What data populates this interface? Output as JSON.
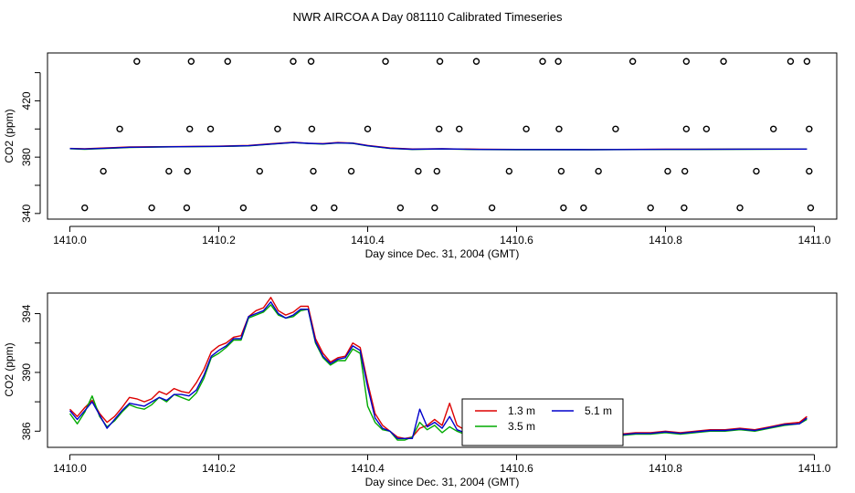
{
  "title": "NWR AIRCOA A  Day 081110  Calibrated Timeseries",
  "colors": {
    "h1": "#dd0000",
    "h2": "#00aa00",
    "h3": "#0000cc",
    "axis": "#000000"
  },
  "chart_data": [
    {
      "type": "line",
      "panel": "top",
      "xlabel": "Day since Dec. 31, 2004 (GMT)",
      "ylabel": "CO2 (ppm)",
      "xlim": [
        1409.97,
        1411.03
      ],
      "ylim": [
        336,
        454
      ],
      "x_ticks": [
        1410.0,
        1410.2,
        1410.4,
        1410.6,
        1410.8,
        1411.0
      ],
      "x_tick_labels": [
        "1410.0",
        "1410.2",
        "1410.4",
        "1410.6",
        "1410.8",
        "1411.0"
      ],
      "y_ticks": [
        340,
        380,
        420
      ],
      "y_tick_labels": [
        "340",
        "380",
        "420"
      ],
      "y_minor_ticks": [
        360,
        400,
        440
      ],
      "series": [
        {
          "color_key": "h1",
          "x": [
            1410.0,
            1410.02,
            1410.05,
            1410.08,
            1410.12,
            1410.16,
            1410.2,
            1410.24,
            1410.27,
            1410.3,
            1410.32,
            1410.34,
            1410.36,
            1410.38,
            1410.4,
            1410.43,
            1410.46,
            1410.5,
            1410.55,
            1410.6,
            1410.7,
            1410.8,
            1410.9,
            1410.99
          ],
          "y": [
            386.2,
            385.9,
            386.6,
            387.2,
            387.4,
            387.6,
            387.8,
            388.3,
            389.5,
            390.6,
            389.9,
            389.6,
            390.4,
            390.0,
            388.3,
            386.5,
            385.8,
            386.0,
            385.6,
            385.5,
            385.4,
            385.6,
            385.7,
            385.8
          ]
        },
        {
          "color_key": "h2",
          "x": [
            1410.0,
            1410.02,
            1410.05,
            1410.08,
            1410.12,
            1410.16,
            1410.2,
            1410.24,
            1410.27,
            1410.3,
            1410.32,
            1410.34,
            1410.36,
            1410.38,
            1410.4,
            1410.43,
            1410.46,
            1410.5,
            1410.55,
            1410.6,
            1410.7,
            1410.8,
            1410.9,
            1410.99
          ],
          "y": [
            386.0,
            385.6,
            386.2,
            386.9,
            387.2,
            387.4,
            387.6,
            388.0,
            389.2,
            390.3,
            389.7,
            389.3,
            390.1,
            389.8,
            388.0,
            386.2,
            385.5,
            385.8,
            385.4,
            385.3,
            385.3,
            385.5,
            385.6,
            385.7
          ]
        },
        {
          "color_key": "h3",
          "x": [
            1410.0,
            1410.02,
            1410.05,
            1410.08,
            1410.12,
            1410.16,
            1410.2,
            1410.24,
            1410.27,
            1410.3,
            1410.32,
            1410.34,
            1410.36,
            1410.38,
            1410.4,
            1410.43,
            1410.46,
            1410.5,
            1410.55,
            1410.6,
            1410.7,
            1410.8,
            1410.9,
            1410.99
          ],
          "y": [
            386.1,
            385.8,
            386.4,
            387.0,
            387.3,
            387.5,
            387.7,
            388.1,
            389.3,
            390.4,
            389.8,
            389.4,
            390.2,
            389.9,
            388.1,
            386.3,
            385.6,
            385.9,
            385.5,
            385.4,
            385.35,
            385.55,
            385.65,
            385.75
          ]
        }
      ],
      "points": {
        "x": [
          1410.09,
          1410.163,
          1410.212,
          1410.3,
          1410.324,
          1410.424,
          1410.497,
          1410.546,
          1410.635,
          1410.656,
          1410.756,
          1410.828,
          1410.878,
          1410.968,
          1410.99,
          1410.067,
          1410.161,
          1410.189,
          1410.279,
          1410.325,
          1410.4,
          1410.496,
          1410.523,
          1410.613,
          1410.657,
          1410.733,
          1410.828,
          1410.855,
          1410.945,
          1410.993,
          1410.045,
          1410.133,
          1410.158,
          1410.255,
          1410.327,
          1410.378,
          1410.468,
          1410.493,
          1410.59,
          1410.66,
          1410.71,
          1410.803,
          1410.826,
          1410.922,
          1410.993,
          1410.02,
          1410.11,
          1410.157,
          1410.233,
          1410.328,
          1410.355,
          1410.444,
          1410.49,
          1410.567,
          1410.663,
          1410.69,
          1410.78,
          1410.825,
          1410.9,
          1410.995
        ],
        "y": [
          448,
          448,
          448,
          448,
          448,
          448,
          448,
          448,
          448,
          448,
          448,
          448,
          448,
          448,
          448,
          400,
          400,
          400,
          400,
          400,
          400,
          400,
          400,
          400,
          400,
          400,
          400,
          400,
          400,
          400,
          370,
          370,
          370,
          370,
          370,
          370,
          370,
          370,
          370,
          370,
          370,
          370,
          370,
          370,
          370,
          344,
          344,
          344,
          344,
          344,
          344,
          344,
          344,
          344,
          344,
          344,
          344,
          344,
          344,
          344
        ]
      }
    },
    {
      "type": "line",
      "panel": "bottom",
      "xlabel": "Day since Dec. 31, 2004 (GMT)",
      "ylabel": "CO2 (ppm)",
      "xlim": [
        1409.97,
        1411.03
      ],
      "ylim": [
        384.9,
        395.4
      ],
      "x_ticks": [
        1410.0,
        1410.2,
        1410.4,
        1410.6,
        1410.8,
        1411.0
      ],
      "x_tick_labels": [
        "1410.0",
        "1410.2",
        "1410.4",
        "1410.6",
        "1410.8",
        "1411.0"
      ],
      "y_ticks": [
        386,
        390,
        394
      ],
      "y_tick_labels": [
        "386",
        "390",
        "394"
      ],
      "y_minor_ticks": [
        388,
        392
      ],
      "legend": {
        "position": "bottom-center",
        "entries": [
          {
            "label": "1.3 m",
            "color_key": "h1"
          },
          {
            "label": "5.1 m",
            "color_key": "h3"
          },
          {
            "label": "3.5 m",
            "color_key": "h2"
          }
        ]
      },
      "series": [
        {
          "color_key": "h1",
          "x": [
            1410.0,
            1410.01,
            1410.02,
            1410.03,
            1410.04,
            1410.05,
            1410.06,
            1410.07,
            1410.08,
            1410.09,
            1410.1,
            1410.11,
            1410.12,
            1410.13,
            1410.14,
            1410.15,
            1410.16,
            1410.17,
            1410.18,
            1410.19,
            1410.2,
            1410.21,
            1410.22,
            1410.23,
            1410.24,
            1410.25,
            1410.26,
            1410.27,
            1410.28,
            1410.29,
            1410.3,
            1410.31,
            1410.32,
            1410.33,
            1410.34,
            1410.35,
            1410.36,
            1410.37,
            1410.38,
            1410.39,
            1410.4,
            1410.41,
            1410.42,
            1410.43,
            1410.44,
            1410.45,
            1410.46,
            1410.47,
            1410.48,
            1410.49,
            1410.5,
            1410.51,
            1410.52,
            1410.53,
            1410.54,
            1410.55,
            1410.56,
            1410.58,
            1410.6,
            1410.62,
            1410.64,
            1410.66,
            1410.68,
            1410.7,
            1410.72,
            1410.74,
            1410.76,
            1410.78,
            1410.8,
            1410.82,
            1410.84,
            1410.86,
            1410.88,
            1410.9,
            1410.92,
            1410.94,
            1410.96,
            1410.98,
            1410.99
          ],
          "y": [
            387.5,
            387.0,
            387.6,
            388.1,
            387.2,
            386.6,
            387.0,
            387.6,
            388.3,
            388.2,
            388.0,
            388.2,
            388.7,
            388.5,
            388.9,
            388.7,
            388.6,
            389.3,
            390.2,
            391.4,
            391.8,
            392.0,
            392.4,
            392.5,
            393.8,
            394.2,
            394.4,
            395.1,
            394.2,
            393.9,
            394.1,
            394.5,
            394.5,
            392.3,
            391.3,
            390.7,
            391.0,
            391.1,
            392.0,
            391.7,
            389.3,
            387.2,
            386.4,
            386.0,
            385.6,
            385.5,
            385.6,
            386.2,
            386.4,
            386.8,
            386.4,
            387.9,
            386.4,
            386.1,
            385.9,
            386.1,
            385.9,
            385.7,
            385.5,
            385.6,
            385.7,
            385.6,
            385.6,
            385.8,
            385.7,
            385.8,
            385.9,
            385.9,
            386.0,
            385.9,
            386.0,
            386.1,
            386.1,
            386.2,
            386.1,
            386.3,
            386.5,
            386.6,
            387.0
          ]
        },
        {
          "color_key": "h2",
          "x": [
            1410.0,
            1410.01,
            1410.02,
            1410.03,
            1410.04,
            1410.05,
            1410.06,
            1410.07,
            1410.08,
            1410.09,
            1410.1,
            1410.11,
            1410.12,
            1410.13,
            1410.14,
            1410.15,
            1410.16,
            1410.17,
            1410.18,
            1410.19,
            1410.2,
            1410.21,
            1410.22,
            1410.23,
            1410.24,
            1410.25,
            1410.26,
            1410.27,
            1410.28,
            1410.29,
            1410.3,
            1410.31,
            1410.32,
            1410.33,
            1410.34,
            1410.35,
            1410.36,
            1410.37,
            1410.38,
            1410.39,
            1410.4,
            1410.41,
            1410.42,
            1410.43,
            1410.44,
            1410.45,
            1410.46,
            1410.47,
            1410.48,
            1410.49,
            1410.5,
            1410.51,
            1410.52,
            1410.53,
            1410.54,
            1410.55,
            1410.56,
            1410.58,
            1410.6,
            1410.62,
            1410.64,
            1410.66,
            1410.68,
            1410.7,
            1410.72,
            1410.74,
            1410.76,
            1410.78,
            1410.8,
            1410.82,
            1410.84,
            1410.86,
            1410.88,
            1410.9,
            1410.92,
            1410.94,
            1410.96,
            1410.98,
            1410.99
          ],
          "y": [
            387.2,
            386.5,
            387.3,
            388.4,
            387.0,
            386.3,
            386.7,
            387.3,
            387.8,
            387.6,
            387.5,
            387.8,
            388.3,
            388.0,
            388.5,
            388.3,
            388.1,
            388.6,
            389.6,
            391.0,
            391.3,
            391.7,
            392.2,
            392.2,
            393.7,
            393.9,
            394.1,
            394.6,
            393.9,
            393.7,
            393.8,
            394.2,
            394.3,
            392.0,
            391.0,
            390.5,
            390.8,
            390.8,
            391.6,
            391.3,
            387.7,
            386.6,
            386.1,
            386.0,
            385.4,
            385.4,
            385.6,
            386.6,
            386.1,
            386.4,
            385.9,
            386.3,
            386.0,
            385.8,
            385.7,
            385.9,
            385.7,
            385.5,
            385.4,
            385.5,
            385.6,
            385.5,
            385.5,
            385.7,
            385.6,
            385.7,
            385.8,
            385.8,
            385.9,
            385.8,
            385.9,
            386.0,
            386.0,
            386.1,
            386.0,
            386.2,
            386.4,
            386.5,
            386.8
          ]
        },
        {
          "color_key": "h3",
          "x": [
            1410.0,
            1410.01,
            1410.02,
            1410.03,
            1410.04,
            1410.05,
            1410.06,
            1410.07,
            1410.08,
            1410.09,
            1410.1,
            1410.11,
            1410.12,
            1410.13,
            1410.14,
            1410.15,
            1410.16,
            1410.17,
            1410.18,
            1410.19,
            1410.2,
            1410.21,
            1410.22,
            1410.23,
            1410.24,
            1410.25,
            1410.26,
            1410.27,
            1410.28,
            1410.29,
            1410.3,
            1410.31,
            1410.32,
            1410.33,
            1410.34,
            1410.35,
            1410.36,
            1410.37,
            1410.38,
            1410.39,
            1410.4,
            1410.41,
            1410.42,
            1410.43,
            1410.44,
            1410.45,
            1410.46,
            1410.47,
            1410.48,
            1410.49,
            1410.5,
            1410.51,
            1410.52,
            1410.53,
            1410.54,
            1410.55,
            1410.56,
            1410.58,
            1410.6,
            1410.62,
            1410.64,
            1410.66,
            1410.68,
            1410.7,
            1410.72,
            1410.74,
            1410.76,
            1410.78,
            1410.8,
            1410.82,
            1410.84,
            1410.86,
            1410.88,
            1410.9,
            1410.92,
            1410.94,
            1410.96,
            1410.98,
            1410.99
          ],
          "y": [
            387.4,
            386.8,
            387.4,
            388.0,
            387.1,
            386.2,
            386.8,
            387.4,
            387.9,
            387.8,
            387.7,
            388.0,
            388.3,
            388.1,
            388.5,
            388.5,
            388.4,
            388.8,
            389.8,
            391.1,
            391.5,
            391.8,
            392.3,
            392.3,
            393.8,
            394.0,
            394.2,
            394.8,
            394.0,
            393.7,
            393.9,
            394.3,
            394.3,
            392.1,
            391.1,
            390.6,
            390.9,
            391.0,
            391.8,
            391.5,
            389.0,
            386.9,
            386.2,
            386.0,
            385.5,
            385.5,
            385.5,
            387.5,
            386.3,
            386.6,
            386.2,
            387.0,
            386.1,
            385.9,
            385.8,
            386.0,
            385.8,
            385.6,
            385.45,
            385.55,
            385.65,
            385.55,
            385.55,
            385.75,
            385.65,
            385.75,
            385.85,
            385.85,
            385.95,
            385.85,
            385.95,
            386.05,
            386.05,
            386.15,
            386.05,
            386.25,
            386.45,
            386.5,
            386.9
          ]
        }
      ]
    }
  ]
}
